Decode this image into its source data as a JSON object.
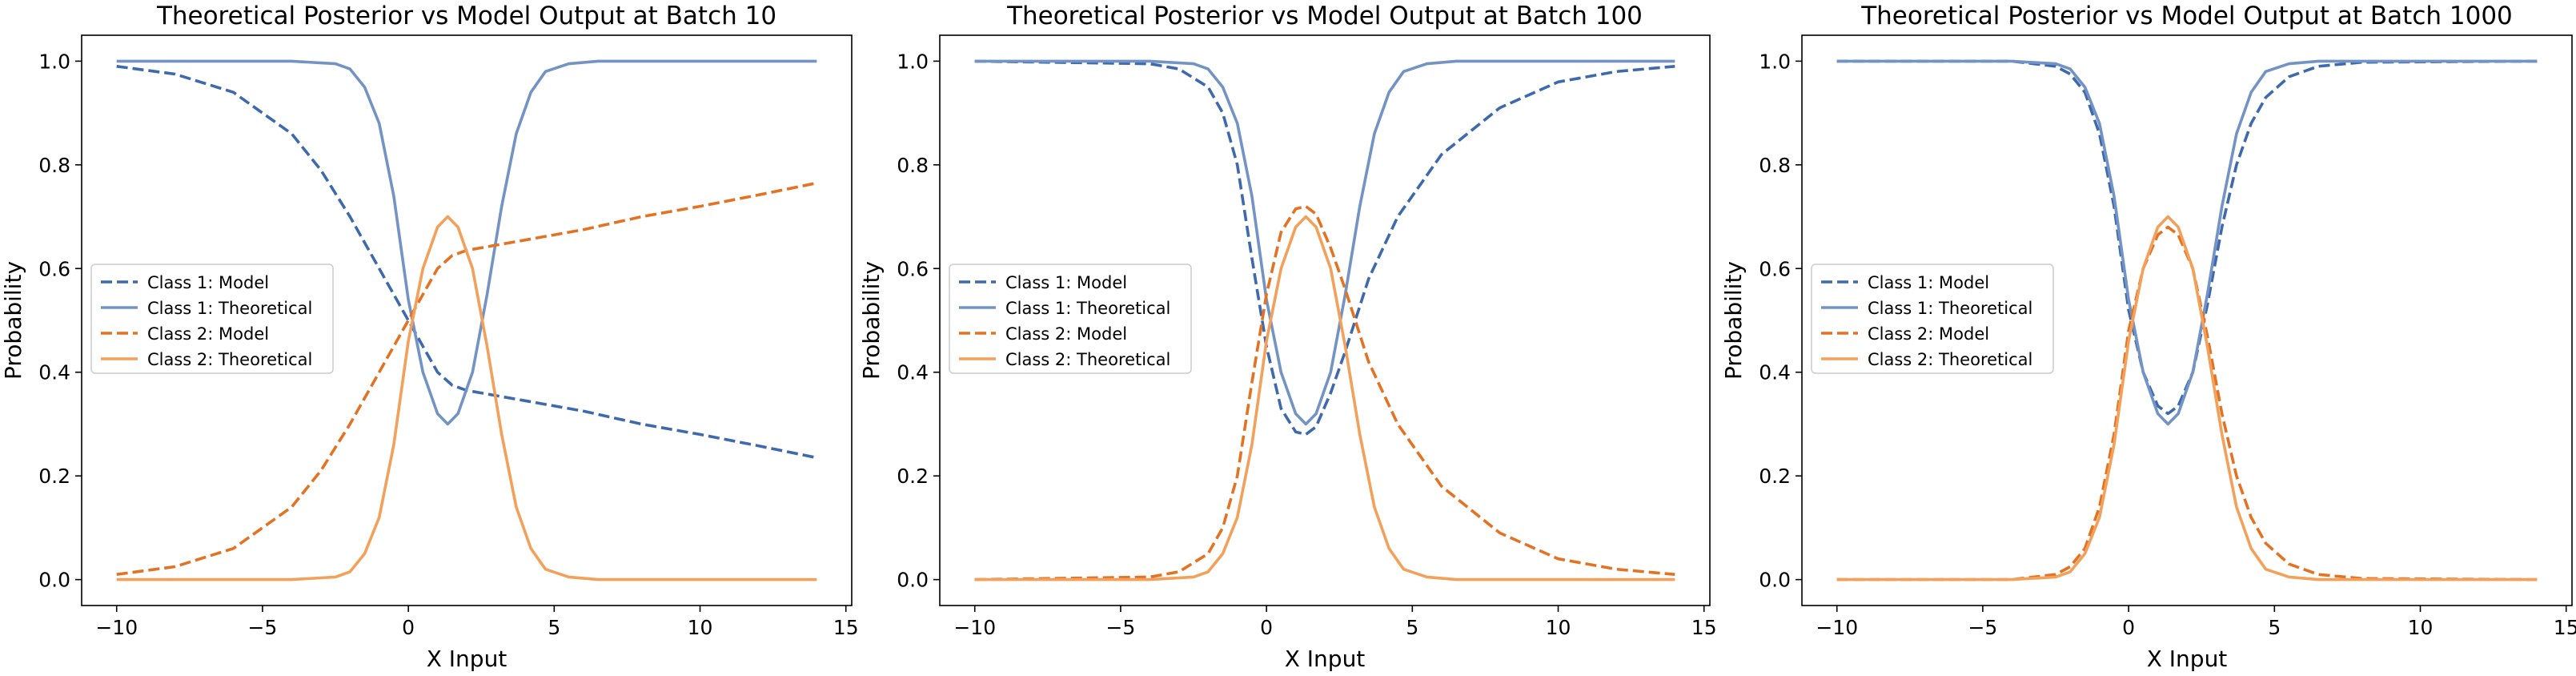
{
  "chart_data": [
    {
      "type": "line",
      "title": "Theoretical Posterior vs Model Output at Batch 10",
      "xlabel": "X Input",
      "ylabel": "Probability",
      "xlim": [
        -11.2,
        15.2
      ],
      "ylim": [
        -0.05,
        1.05
      ],
      "xticks": [
        -10,
        -5,
        0,
        5,
        10,
        15
      ],
      "yticks": [
        0.0,
        0.2,
        0.4,
        0.6,
        0.8,
        1.0
      ],
      "legend": "center-left",
      "series": [
        {
          "name": "Class 1: Model",
          "style": "dashed",
          "color": "#3e6aad",
          "x": [
            -10,
            -8,
            -6,
            -4,
            -3,
            -2,
            -1,
            0,
            0.5,
            1,
            1.5,
            2,
            3,
            4,
            6,
            8,
            10,
            12,
            14
          ],
          "y": [
            0.99,
            0.975,
            0.94,
            0.86,
            0.79,
            0.7,
            0.6,
            0.5,
            0.45,
            0.4,
            0.375,
            0.365,
            0.355,
            0.345,
            0.325,
            0.3,
            0.28,
            0.258,
            0.235
          ]
        },
        {
          "name": "Class 1: Theoretical",
          "style": "solid",
          "color": "#7393c4",
          "x": [
            -10,
            -4,
            -2.5,
            -2,
            -1.5,
            -1,
            -0.5,
            0,
            0.5,
            1,
            1.35,
            1.7,
            2.2,
            2.7,
            3.2,
            3.7,
            4.2,
            4.7,
            5.5,
            6.5,
            8,
            14
          ],
          "y": [
            1.0,
            1.0,
            0.995,
            0.985,
            0.95,
            0.88,
            0.74,
            0.54,
            0.4,
            0.32,
            0.3,
            0.32,
            0.4,
            0.55,
            0.72,
            0.86,
            0.94,
            0.98,
            0.995,
            1.0,
            1.0,
            1.0
          ]
        },
        {
          "name": "Class 2: Model",
          "style": "dashed",
          "color": "#e37222",
          "x": [
            -10,
            -8,
            -6,
            -4,
            -3,
            -2,
            -1,
            0,
            0.5,
            1,
            1.5,
            2,
            3,
            4,
            6,
            8,
            10,
            12,
            14
          ],
          "y": [
            0.01,
            0.025,
            0.06,
            0.14,
            0.21,
            0.3,
            0.4,
            0.5,
            0.55,
            0.6,
            0.625,
            0.635,
            0.645,
            0.655,
            0.675,
            0.7,
            0.72,
            0.742,
            0.765
          ]
        },
        {
          "name": "Class 2: Theoretical",
          "style": "solid",
          "color": "#f2a05a",
          "x": [
            -10,
            -4,
            -2.5,
            -2,
            -1.5,
            -1,
            -0.5,
            0,
            0.5,
            1,
            1.35,
            1.7,
            2.2,
            2.7,
            3.2,
            3.7,
            4.2,
            4.7,
            5.5,
            6.5,
            8,
            14
          ],
          "y": [
            0.0,
            0.0,
            0.005,
            0.015,
            0.05,
            0.12,
            0.26,
            0.46,
            0.6,
            0.68,
            0.7,
            0.68,
            0.6,
            0.45,
            0.28,
            0.14,
            0.06,
            0.02,
            0.005,
            0.0,
            0.0,
            0.0
          ]
        }
      ]
    },
    {
      "type": "line",
      "title": "Theoretical Posterior vs Model Output at Batch 100",
      "xlabel": "X Input",
      "ylabel": "Probability",
      "xlim": [
        -11.2,
        15.2
      ],
      "ylim": [
        -0.05,
        1.05
      ],
      "xticks": [
        -10,
        -5,
        0,
        5,
        10,
        15
      ],
      "yticks": [
        0.0,
        0.2,
        0.4,
        0.6,
        0.8,
        1.0
      ],
      "legend": "center-left",
      "series": [
        {
          "name": "Class 1: Model",
          "style": "dashed",
          "color": "#3e6aad",
          "x": [
            -10,
            -4,
            -3,
            -2,
            -1.5,
            -1,
            -0.5,
            0,
            0.5,
            1,
            1.35,
            1.7,
            2.2,
            2.7,
            3.5,
            4.5,
            6,
            8,
            10,
            12,
            14
          ],
          "y": [
            1.0,
            0.995,
            0.985,
            0.95,
            0.9,
            0.8,
            0.62,
            0.45,
            0.33,
            0.285,
            0.28,
            0.295,
            0.36,
            0.44,
            0.58,
            0.7,
            0.82,
            0.91,
            0.96,
            0.98,
            0.99
          ]
        },
        {
          "name": "Class 1: Theoretical",
          "style": "solid",
          "color": "#7393c4",
          "x": [
            -10,
            -4,
            -2.5,
            -2,
            -1.5,
            -1,
            -0.5,
            0,
            0.5,
            1,
            1.35,
            1.7,
            2.2,
            2.7,
            3.2,
            3.7,
            4.2,
            4.7,
            5.5,
            6.5,
            8,
            14
          ],
          "y": [
            1.0,
            1.0,
            0.995,
            0.985,
            0.95,
            0.88,
            0.74,
            0.54,
            0.4,
            0.32,
            0.3,
            0.32,
            0.4,
            0.55,
            0.72,
            0.86,
            0.94,
            0.98,
            0.995,
            1.0,
            1.0,
            1.0
          ]
        },
        {
          "name": "Class 2: Model",
          "style": "dashed",
          "color": "#e37222",
          "x": [
            -10,
            -4,
            -3,
            -2,
            -1.5,
            -1,
            -0.5,
            0,
            0.5,
            1,
            1.35,
            1.7,
            2.2,
            2.7,
            3.5,
            4.5,
            6,
            8,
            10,
            12,
            14
          ],
          "y": [
            0.0,
            0.005,
            0.015,
            0.05,
            0.1,
            0.2,
            0.38,
            0.55,
            0.67,
            0.715,
            0.72,
            0.705,
            0.64,
            0.56,
            0.42,
            0.3,
            0.18,
            0.09,
            0.04,
            0.02,
            0.01
          ]
        },
        {
          "name": "Class 2: Theoretical",
          "style": "solid",
          "color": "#f2a05a",
          "x": [
            -10,
            -4,
            -2.5,
            -2,
            -1.5,
            -1,
            -0.5,
            0,
            0.5,
            1,
            1.35,
            1.7,
            2.2,
            2.7,
            3.2,
            3.7,
            4.2,
            4.7,
            5.5,
            6.5,
            8,
            14
          ],
          "y": [
            0.0,
            0.0,
            0.005,
            0.015,
            0.05,
            0.12,
            0.26,
            0.46,
            0.6,
            0.68,
            0.7,
            0.68,
            0.6,
            0.45,
            0.28,
            0.14,
            0.06,
            0.02,
            0.005,
            0.0,
            0.0,
            0.0
          ]
        }
      ]
    },
    {
      "type": "line",
      "title": "Theoretical Posterior vs Model Output at Batch 1000",
      "xlabel": "X Input",
      "ylabel": "Probability",
      "xlim": [
        -11.2,
        15.2
      ],
      "ylim": [
        -0.05,
        1.05
      ],
      "xticks": [
        -10,
        -5,
        0,
        5,
        10,
        15
      ],
      "yticks": [
        0.0,
        0.2,
        0.4,
        0.6,
        0.8,
        1.0
      ],
      "legend": "center-left",
      "series": [
        {
          "name": "Class 1: Model",
          "style": "dashed",
          "color": "#3e6aad",
          "x": [
            -10,
            -4,
            -2.5,
            -2,
            -1.5,
            -1,
            -0.5,
            0,
            0.5,
            1,
            1.35,
            1.7,
            2.2,
            2.7,
            3.2,
            3.7,
            4.2,
            4.7,
            5.5,
            6.5,
            8,
            14
          ],
          "y": [
            1.0,
            1.0,
            0.99,
            0.975,
            0.94,
            0.86,
            0.72,
            0.52,
            0.4,
            0.335,
            0.32,
            0.335,
            0.4,
            0.53,
            0.68,
            0.8,
            0.88,
            0.93,
            0.97,
            0.99,
            0.998,
            1.0
          ]
        },
        {
          "name": "Class 1: Theoretical",
          "style": "solid",
          "color": "#7393c4",
          "x": [
            -10,
            -4,
            -2.5,
            -2,
            -1.5,
            -1,
            -0.5,
            0,
            0.5,
            1,
            1.35,
            1.7,
            2.2,
            2.7,
            3.2,
            3.7,
            4.2,
            4.7,
            5.5,
            6.5,
            8,
            14
          ],
          "y": [
            1.0,
            1.0,
            0.995,
            0.985,
            0.95,
            0.88,
            0.74,
            0.54,
            0.4,
            0.32,
            0.3,
            0.32,
            0.4,
            0.55,
            0.72,
            0.86,
            0.94,
            0.98,
            0.995,
            1.0,
            1.0,
            1.0
          ]
        },
        {
          "name": "Class 2: Model",
          "style": "dashed",
          "color": "#e37222",
          "x": [
            -10,
            -4,
            -2.5,
            -2,
            -1.5,
            -1,
            -0.5,
            0,
            0.5,
            1,
            1.35,
            1.7,
            2.2,
            2.7,
            3.2,
            3.7,
            4.2,
            4.7,
            5.5,
            6.5,
            8,
            14
          ],
          "y": [
            0.0,
            0.0,
            0.01,
            0.025,
            0.06,
            0.14,
            0.28,
            0.48,
            0.6,
            0.665,
            0.68,
            0.665,
            0.6,
            0.47,
            0.32,
            0.2,
            0.12,
            0.07,
            0.03,
            0.01,
            0.002,
            0.0
          ]
        },
        {
          "name": "Class 2: Theoretical",
          "style": "solid",
          "color": "#f2a05a",
          "x": [
            -10,
            -4,
            -2.5,
            -2,
            -1.5,
            -1,
            -0.5,
            0,
            0.5,
            1,
            1.35,
            1.7,
            2.2,
            2.7,
            3.2,
            3.7,
            4.2,
            4.7,
            5.5,
            6.5,
            8,
            14
          ],
          "y": [
            0.0,
            0.0,
            0.005,
            0.015,
            0.05,
            0.12,
            0.26,
            0.46,
            0.6,
            0.68,
            0.7,
            0.68,
            0.6,
            0.45,
            0.28,
            0.14,
            0.06,
            0.02,
            0.005,
            0.0,
            0.0,
            0.0
          ]
        }
      ]
    }
  ]
}
